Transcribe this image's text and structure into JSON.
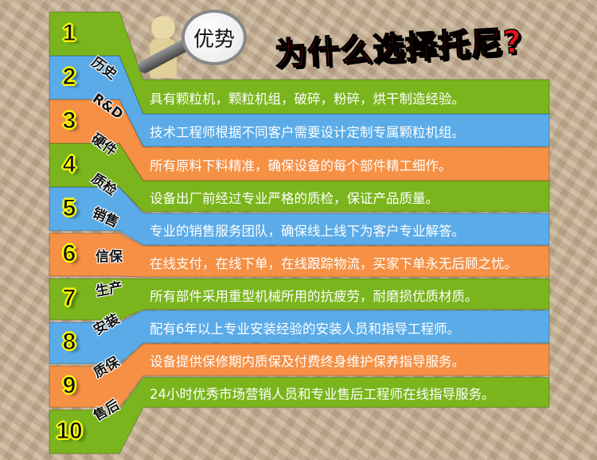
{
  "title": "为什么选择托尼?",
  "badge": "优势",
  "colors": {
    "green": "#7ab51d",
    "blue": "#5aabe8",
    "orange": "#f59045",
    "title_red": "#e3151a"
  },
  "items": [
    {
      "num": "1",
      "category": "历史",
      "color": "green",
      "text": "具有颗粒机，颗粒机组，破碎，粉碎，烘干制造经验。"
    },
    {
      "num": "2",
      "category": "R&D",
      "color": "blue",
      "text": "技术工程师根据不同客户需要设计定制专属颗粒机组。"
    },
    {
      "num": "3",
      "category": "硬件",
      "color": "orange",
      "text": "所有原料下料精准，确保设备的每个部件精工细作。"
    },
    {
      "num": "4",
      "category": "质检",
      "color": "green",
      "text": "设备出厂前经过专业严格的质检，保证产品质量。"
    },
    {
      "num": "5",
      "category": "销售",
      "color": "blue",
      "text": "专业的销售服务团队，确保线上线下为客户专业解答。"
    },
    {
      "num": "6",
      "category": "信保",
      "color": "orange",
      "text": "在线支付，在线下单，在线跟踪物流，买家下单永无后顾之忧。"
    },
    {
      "num": "7",
      "category": "生产",
      "color": "green",
      "text": "所有部件采用重型机械所用的抗疲劳，耐磨损优质材质。"
    },
    {
      "num": "8",
      "category": "安装",
      "color": "blue",
      "text": "配有6年以上专业安装经验的安装人员和指导工程师。"
    },
    {
      "num": "9",
      "category": "质保",
      "color": "orange",
      "text": "设备提供保修期内质保及付费终身维护保养指导服务。"
    },
    {
      "num": "10",
      "category": "售后",
      "color": "green",
      "text": "24小时优秀市场营销人员和专业售后工程师在线指导服务。"
    }
  ]
}
